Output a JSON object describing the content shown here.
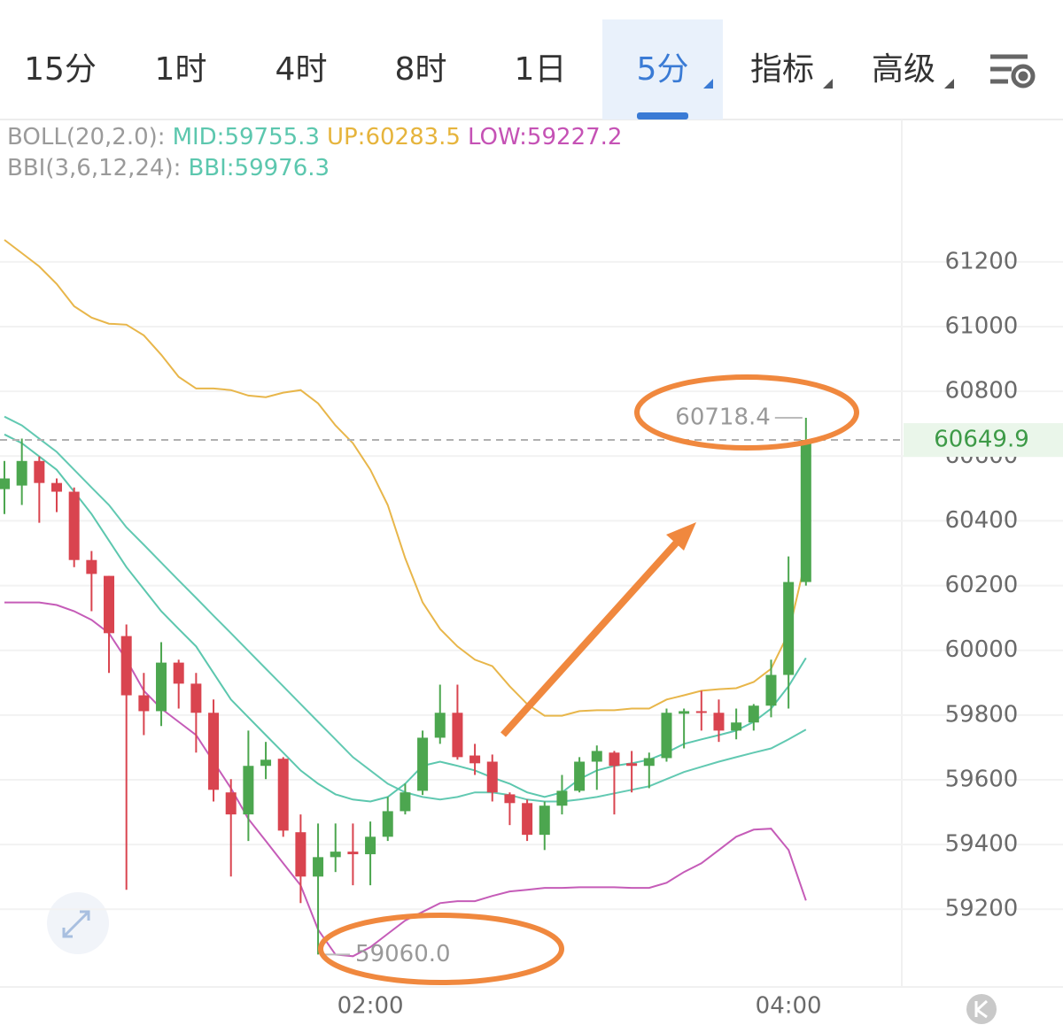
{
  "tabs": [
    {
      "label": "15分",
      "active": false,
      "dropdown": false
    },
    {
      "label": "1时",
      "active": false,
      "dropdown": false
    },
    {
      "label": "4时",
      "active": false,
      "dropdown": false
    },
    {
      "label": "8时",
      "active": false,
      "dropdown": false
    },
    {
      "label": "1日",
      "active": false,
      "dropdown": false
    },
    {
      "label": "5分",
      "active": true,
      "dropdown": true
    },
    {
      "label": "指标",
      "active": false,
      "dropdown": true
    },
    {
      "label": "高级",
      "active": false,
      "dropdown": true
    }
  ],
  "chart_data": {
    "type": "candlestick",
    "indicator_labels": [
      [
        {
          "text": "BOLL(20,2.0):",
          "color": "#9a9a9a"
        },
        {
          "text": "MID:59755.3",
          "color": "#5cc7ae"
        },
        {
          "text": "UP:60283.5",
          "color": "#e6b43c"
        },
        {
          "text": "LOW:59227.2",
          "color": "#c552b5"
        }
      ],
      [
        {
          "text": "BBI(3,6,12,24):",
          "color": "#9a9a9a"
        },
        {
          "text": "BBI:59976.3",
          "color": "#5cc7ae"
        }
      ]
    ],
    "categories": [
      null,
      null,
      null,
      null,
      null,
      null,
      null,
      null,
      null,
      null,
      null,
      null,
      null,
      null,
      null,
      null,
      null,
      null,
      null,
      null,
      null,
      "02:00",
      null,
      null,
      null,
      null,
      null,
      null,
      null,
      null,
      null,
      null,
      null,
      null,
      null,
      null,
      null,
      null,
      null,
      null,
      null,
      null,
      null,
      null,
      null,
      "04:00",
      null
    ],
    "open": [
      60498,
      60509,
      60585,
      60517,
      60490,
      60279,
      60230,
      60044,
      59861,
      59812,
      59962,
      59897,
      59807,
      59561,
      59493,
      59643,
      59665,
      59438,
      59301,
      59361,
      59378,
      59370,
      59424,
      59503,
      59566,
      59730,
      59807,
      59675,
      59656,
      59555,
      59528,
      59430,
      59520,
      59566,
      59656,
      59684,
      59651,
      59643,
      59667,
      59804,
      59812,
      59807,
      59752,
      59777,
      59829,
      59924,
      60211
    ],
    "high": [
      60585,
      60654,
      60599,
      60531,
      60503,
      60307,
      60230,
      60080,
      59930,
      60025,
      59971,
      59930,
      59848,
      59602,
      59752,
      59717,
      59670,
      59493,
      59465,
      59465,
      59465,
      59471,
      59547,
      59588,
      59752,
      59894,
      59894,
      59711,
      59678,
      59561,
      59539,
      59533,
      59615,
      59670,
      59706,
      59689,
      59689,
      59684,
      59820,
      59820,
      59875,
      59848,
      59820,
      59834,
      59971,
      60290,
      60718.4
    ],
    "low": [
      60421,
      60449,
      60394,
      60427,
      60257,
      60121,
      59930,
      59260,
      59738,
      59766,
      59820,
      59684,
      59533,
      59301,
      59411,
      59602,
      59424,
      59219,
      59060,
      59315,
      59274,
      59274,
      59411,
      59493,
      59553,
      59711,
      59662,
      59615,
      59533,
      59460,
      59411,
      59383,
      59493,
      59561,
      59569,
      59493,
      59561,
      59574,
      59656,
      59697,
      59752,
      59717,
      59725,
      59752,
      59793,
      59820,
      60200
    ],
    "close": [
      60531,
      60585,
      60517,
      60490,
      60279,
      60236,
      60053,
      59861,
      59812,
      59962,
      59897,
      59807,
      59569,
      59493,
      59643,
      59662,
      59443,
      59301,
      59361,
      59378,
      59370,
      59424,
      59503,
      59561,
      59730,
      59807,
      59670,
      59651,
      59561,
      59528,
      59430,
      59520,
      59566,
      59656,
      59689,
      59643,
      59643,
      59667,
      59807,
      59812,
      59807,
      59752,
      59777,
      59829,
      59924,
      60211,
      60649.9
    ],
    "up_color": "#4ca64f",
    "down_color": "#d9444f",
    "overlays": [
      {
        "color": "#e8b64a",
        "values": [
          61268,
          61227,
          61186,
          61132,
          61063,
          61028,
          61009,
          61006,
          60973,
          60913,
          60845,
          60809,
          60809,
          60804,
          60787,
          60782,
          60796,
          60804,
          60763,
          60695,
          60640,
          60558,
          60449,
          60285,
          60148,
          60066,
          60012,
          59971,
          59951,
          59889,
          59834,
          59798,
          59798,
          59812,
          59815,
          59815,
          59820,
          59820,
          59848,
          59861,
          59875,
          59880,
          59883,
          59902,
          59943,
          60053,
          60283.5
        ]
      },
      {
        "color": "#62c9b2",
        "values": [
          60722,
          60695,
          60654,
          60613,
          60558,
          60503,
          60449,
          60380,
          60326,
          60271,
          60216,
          60162,
          60107,
          60053,
          59998,
          59943,
          59889,
          59834,
          59779,
          59725,
          59670,
          59629,
          59588,
          59561,
          59547,
          59539,
          59547,
          59561,
          59561,
          59553,
          59539,
          59533,
          59533,
          59539,
          59547,
          59558,
          59569,
          59580,
          59602,
          59624,
          59640,
          59656,
          59670,
          59684,
          59697,
          59725,
          59755.3
        ]
      },
      {
        "color": "#c55cb8",
        "values": [
          60148,
          60148,
          60148,
          60140,
          60121,
          60094,
          60053,
          59971,
          59875,
          59820,
          59779,
          59738,
          59656,
          59574,
          59479,
          59411,
          59342,
          59274,
          59137,
          59060,
          59055,
          59083,
          59124,
          59165,
          59192,
          59219,
          59225,
          59225,
          59241,
          59255,
          59260,
          59266,
          59266,
          59268,
          59268,
          59268,
          59266,
          59266,
          59282,
          59315,
          59342,
          59383,
          59424,
          59446,
          59449,
          59383,
          59227.2
        ]
      },
      {
        "color": "#5cc7ae",
        "values": [
          60667,
          60640,
          60599,
          60558,
          60490,
          60421,
          60339,
          60257,
          60189,
          60121,
          60066,
          60012,
          59930,
          59848,
          59793,
          59738,
          59684,
          59629,
          59588,
          59555,
          59539,
          59533,
          59547,
          59588,
          59643,
          59656,
          59643,
          59629,
          59607,
          59588,
          59561,
          59547,
          59561,
          59602,
          59629,
          59643,
          59651,
          59662,
          59684,
          59711,
          59725,
          59738,
          59752,
          59779,
          59820,
          59889,
          59976.3
        ]
      }
    ],
    "ylim": [
      58960,
      61640
    ],
    "yticks": [
      59200,
      59400,
      59600,
      59800,
      60000,
      60200,
      60400,
      60600,
      60800,
      61000,
      61200
    ],
    "grid": true,
    "high_label": "60718.4",
    "low_label": "59060.0",
    "last_label": "60649.9"
  }
}
